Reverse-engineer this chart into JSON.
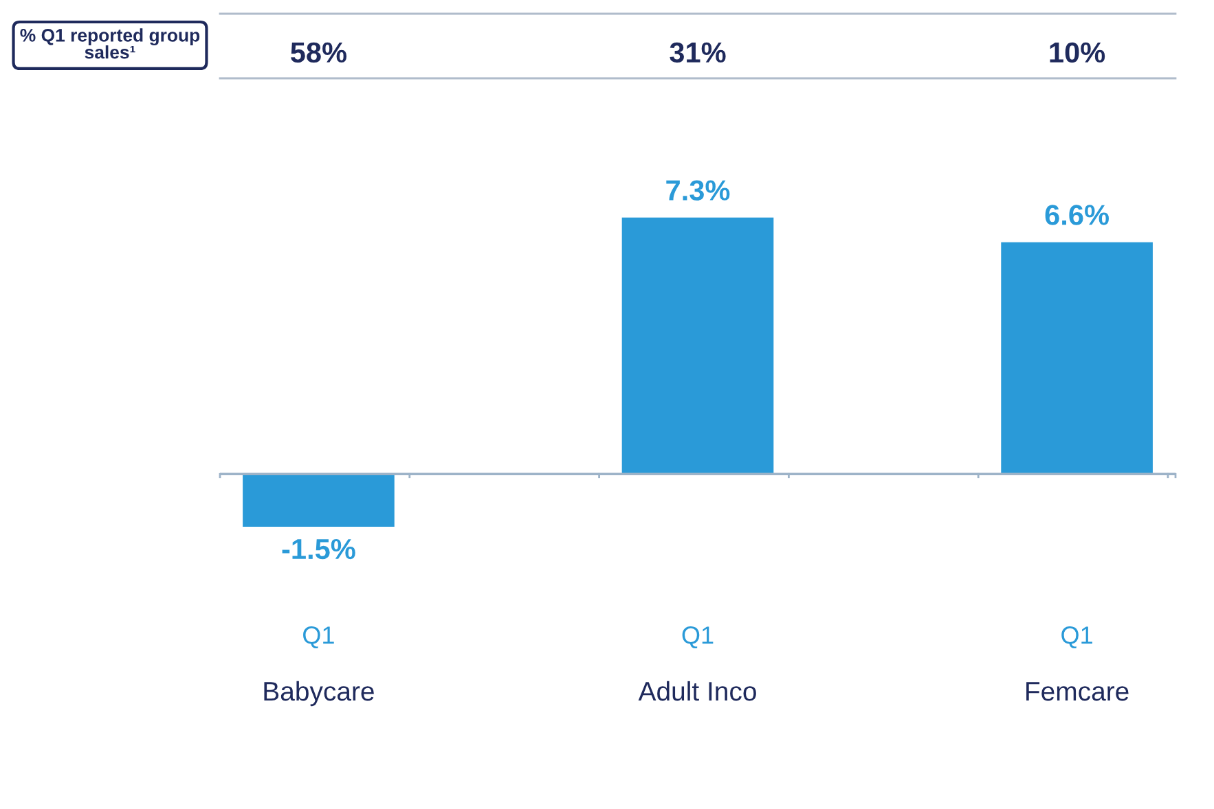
{
  "chart_data": {
    "type": "bar",
    "categories": [
      "Q1",
      "Q1",
      "Q1"
    ],
    "values": [
      -1.5,
      7.3,
      6.6
    ],
    "color": "#2a9ad8",
    "value_labels": [
      "-1.5%",
      "7.3%",
      "6.6%"
    ],
    "ref_lines": [
      {
        "axis": "y",
        "value": 0,
        "color": "#9db3c8"
      }
    ],
    "grid": false,
    "legend": false,
    "annotations": [
      "% Q1 reported group sales¹",
      "58%",
      "31%",
      "10%",
      "Babycare",
      "Adult Inco",
      "Femcare"
    ]
  }
}
